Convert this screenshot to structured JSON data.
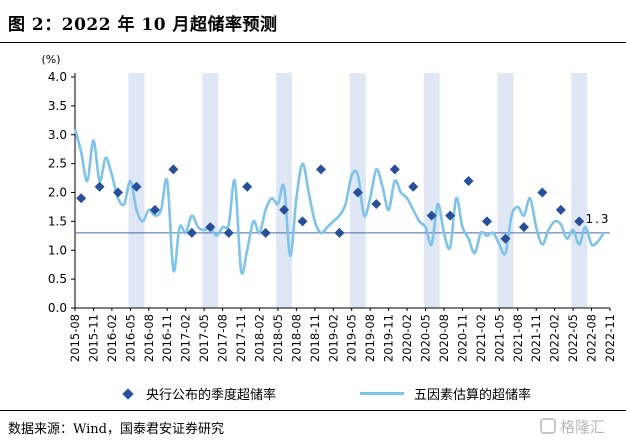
{
  "figure": {
    "title": "图 2：2022 年 10 月超储率预测",
    "source": "数据来源：Wind，国泰君安证券研究",
    "watermark": "格隆汇"
  },
  "colors": {
    "diamond": "#2a4f9a",
    "line": "#7ec3e8",
    "shade": "#dfe7f5",
    "refline": "#4a6aa8"
  },
  "chart_data": {
    "type": "line",
    "unit_label": "(%)",
    "ylim": [
      0,
      4.0
    ],
    "yticks": [
      "0.0",
      "0.5",
      "1.0",
      "1.5",
      "2.0",
      "2.5",
      "3.0",
      "3.5",
      "4.0"
    ],
    "xtick_labels": [
      "2015-08",
      "2015-11",
      "2016-02",
      "2016-05",
      "2016-08",
      "2016-11",
      "2017-02",
      "2017-05",
      "2017-08",
      "2017-11",
      "2018-02",
      "2018-05",
      "2018-08",
      "2018-11",
      "2019-02",
      "2019-05",
      "2019-08",
      "2019-11",
      "2020-02",
      "2020-05",
      "2020-08",
      "2020-11",
      "2021-02",
      "2021-05",
      "2021-08",
      "2021-11",
      "2022-02",
      "2022-05",
      "2022-08",
      "2022-11"
    ],
    "shaded_quarter_ends": [
      "2016-06",
      "2017-06",
      "2018-06",
      "2019-06",
      "2020-06",
      "2021-06",
      "2022-06"
    ],
    "reference_line": {
      "y": 1.3,
      "label": "1.3"
    },
    "legend": [
      "央行公布的季度超储率",
      "五因素估算的超储率"
    ],
    "legend_position": "bottom",
    "series": [
      {
        "name": "央行公布的季度超储率",
        "style": "diamond",
        "points": [
          {
            "x": "2015-09",
            "y": 1.9
          },
          {
            "x": "2015-12",
            "y": 2.1
          },
          {
            "x": "2016-03",
            "y": 2.0
          },
          {
            "x": "2016-06",
            "y": 2.1
          },
          {
            "x": "2016-09",
            "y": 1.7
          },
          {
            "x": "2016-12",
            "y": 2.4
          },
          {
            "x": "2017-03",
            "y": 1.3
          },
          {
            "x": "2017-06",
            "y": 1.4
          },
          {
            "x": "2017-09",
            "y": 1.3
          },
          {
            "x": "2017-12",
            "y": 2.1
          },
          {
            "x": "2018-03",
            "y": 1.3
          },
          {
            "x": "2018-06",
            "y": 1.7
          },
          {
            "x": "2018-09",
            "y": 1.5
          },
          {
            "x": "2018-12",
            "y": 2.4
          },
          {
            "x": "2019-03",
            "y": 1.3
          },
          {
            "x": "2019-06",
            "y": 2.0
          },
          {
            "x": "2019-09",
            "y": 1.8
          },
          {
            "x": "2019-12",
            "y": 2.4
          },
          {
            "x": "2020-03",
            "y": 2.1
          },
          {
            "x": "2020-06",
            "y": 1.6
          },
          {
            "x": "2020-09",
            "y": 1.6
          },
          {
            "x": "2020-12",
            "y": 2.2
          },
          {
            "x": "2021-03",
            "y": 1.5
          },
          {
            "x": "2021-06",
            "y": 1.2
          },
          {
            "x": "2021-09",
            "y": 1.4
          },
          {
            "x": "2021-12",
            "y": 2.0
          },
          {
            "x": "2022-03",
            "y": 1.7
          },
          {
            "x": "2022-06",
            "y": 1.5
          }
        ]
      },
      {
        "name": "五因素估算的超储率",
        "style": "line",
        "points": [
          {
            "x": "2015-08",
            "y": 3.1
          },
          {
            "x": "2015-09",
            "y": 2.7
          },
          {
            "x": "2015-10",
            "y": 2.2
          },
          {
            "x": "2015-11",
            "y": 2.9
          },
          {
            "x": "2015-12",
            "y": 2.2
          },
          {
            "x": "2016-01",
            "y": 2.6
          },
          {
            "x": "2016-02",
            "y": 2.3
          },
          {
            "x": "2016-03",
            "y": 1.9
          },
          {
            "x": "2016-04",
            "y": 1.8
          },
          {
            "x": "2016-05",
            "y": 2.2
          },
          {
            "x": "2016-06",
            "y": 1.7
          },
          {
            "x": "2016-07",
            "y": 1.5
          },
          {
            "x": "2016-08",
            "y": 1.7
          },
          {
            "x": "2016-09",
            "y": 1.6
          },
          {
            "x": "2016-10",
            "y": 1.7
          },
          {
            "x": "2016-11",
            "y": 2.2
          },
          {
            "x": "2016-12",
            "y": 0.65
          },
          {
            "x": "2017-01",
            "y": 1.4
          },
          {
            "x": "2017-02",
            "y": 1.3
          },
          {
            "x": "2017-03",
            "y": 1.6
          },
          {
            "x": "2017-04",
            "y": 1.4
          },
          {
            "x": "2017-05",
            "y": 1.35
          },
          {
            "x": "2017-06",
            "y": 1.4
          },
          {
            "x": "2017-07",
            "y": 1.25
          },
          {
            "x": "2017-08",
            "y": 1.4
          },
          {
            "x": "2017-09",
            "y": 1.45
          },
          {
            "x": "2017-10",
            "y": 2.2
          },
          {
            "x": "2017-11",
            "y": 0.65
          },
          {
            "x": "2017-12",
            "y": 1.0
          },
          {
            "x": "2018-01",
            "y": 1.5
          },
          {
            "x": "2018-02",
            "y": 1.3
          },
          {
            "x": "2018-03",
            "y": 1.7
          },
          {
            "x": "2018-04",
            "y": 1.9
          },
          {
            "x": "2018-05",
            "y": 1.8
          },
          {
            "x": "2018-06",
            "y": 2.1
          },
          {
            "x": "2018-07",
            "y": 0.9
          },
          {
            "x": "2018-08",
            "y": 1.9
          },
          {
            "x": "2018-09",
            "y": 2.5
          },
          {
            "x": "2018-10",
            "y": 2.0
          },
          {
            "x": "2018-11",
            "y": 1.5
          },
          {
            "x": "2018-12",
            "y": 1.3
          },
          {
            "x": "2019-01",
            "y": 1.4
          },
          {
            "x": "2019-02",
            "y": 1.5
          },
          {
            "x": "2019-03",
            "y": 1.6
          },
          {
            "x": "2019-04",
            "y": 1.8
          },
          {
            "x": "2019-05",
            "y": 2.3
          },
          {
            "x": "2019-06",
            "y": 2.3
          },
          {
            "x": "2019-07",
            "y": 1.6
          },
          {
            "x": "2019-08",
            "y": 1.9
          },
          {
            "x": "2019-09",
            "y": 2.4
          },
          {
            "x": "2019-10",
            "y": 2.1
          },
          {
            "x": "2019-11",
            "y": 1.7
          },
          {
            "x": "2019-12",
            "y": 2.2
          },
          {
            "x": "2020-01",
            "y": 2.0
          },
          {
            "x": "2020-02",
            "y": 1.9
          },
          {
            "x": "2020-03",
            "y": 1.7
          },
          {
            "x": "2020-04",
            "y": 1.5
          },
          {
            "x": "2020-05",
            "y": 1.4
          },
          {
            "x": "2020-06",
            "y": 1.1
          },
          {
            "x": "2020-07",
            "y": 1.8
          },
          {
            "x": "2020-08",
            "y": 1.3
          },
          {
            "x": "2020-09",
            "y": 1.05
          },
          {
            "x": "2020-10",
            "y": 1.9
          },
          {
            "x": "2020-11",
            "y": 1.4
          },
          {
            "x": "2020-12",
            "y": 1.2
          },
          {
            "x": "2021-01",
            "y": 0.95
          },
          {
            "x": "2021-02",
            "y": 1.3
          },
          {
            "x": "2021-03",
            "y": 1.25
          },
          {
            "x": "2021-04",
            "y": 1.3
          },
          {
            "x": "2021-05",
            "y": 1.1
          },
          {
            "x": "2021-06",
            "y": 0.95
          },
          {
            "x": "2021-07",
            "y": 1.6
          },
          {
            "x": "2021-08",
            "y": 1.75
          },
          {
            "x": "2021-09",
            "y": 1.6
          },
          {
            "x": "2021-10",
            "y": 1.9
          },
          {
            "x": "2021-11",
            "y": 1.4
          },
          {
            "x": "2021-12",
            "y": 1.1
          },
          {
            "x": "2022-01",
            "y": 1.35
          },
          {
            "x": "2022-02",
            "y": 1.5
          },
          {
            "x": "2022-03",
            "y": 1.45
          },
          {
            "x": "2022-04",
            "y": 1.2
          },
          {
            "x": "2022-05",
            "y": 1.35
          },
          {
            "x": "2022-06",
            "y": 1.1
          },
          {
            "x": "2022-07",
            "y": 1.4
          },
          {
            "x": "2022-08",
            "y": 1.1
          },
          {
            "x": "2022-09",
            "y": 1.15
          },
          {
            "x": "2022-10",
            "y": 1.3
          }
        ]
      }
    ]
  }
}
